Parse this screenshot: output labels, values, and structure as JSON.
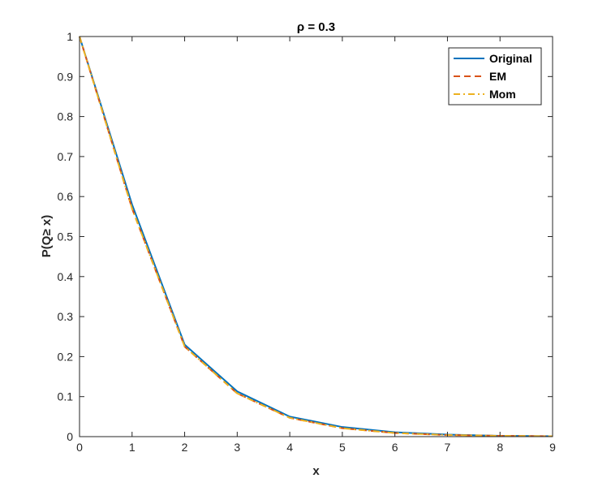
{
  "chart_data": {
    "type": "line",
    "title": "ρ = 0.3",
    "xlabel": "x",
    "ylabel": "P(Q≥ x)",
    "xlim": [
      0,
      9
    ],
    "ylim": [
      0,
      1
    ],
    "xticks": [
      "0",
      "1",
      "2",
      "3",
      "4",
      "5",
      "6",
      "7",
      "8",
      "9"
    ],
    "yticks": [
      "0",
      "0.1",
      "0.2",
      "0.3",
      "0.4",
      "0.5",
      "0.6",
      "0.7",
      "0.8",
      "0.9",
      "1"
    ],
    "grid": false,
    "legend_position": "top-right",
    "x": [
      0,
      1,
      2,
      3,
      4,
      5,
      6,
      7,
      8,
      9
    ],
    "series": [
      {
        "name": "Original",
        "color": "#0072BD",
        "style": "solid",
        "values": [
          1.0,
          0.58,
          0.23,
          0.113,
          0.05,
          0.024,
          0.011,
          0.005,
          0.002,
          0.001
        ]
      },
      {
        "name": "EM",
        "color": "#D95319",
        "style": "dashed",
        "values": [
          1.0,
          0.57,
          0.225,
          0.108,
          0.047,
          0.021,
          0.009,
          0.004,
          0.002,
          0.001
        ]
      },
      {
        "name": "Mom",
        "color": "#EDB120",
        "style": "dashdot",
        "values": [
          1.0,
          0.57,
          0.225,
          0.108,
          0.047,
          0.021,
          0.009,
          0.004,
          0.002,
          0.001
        ]
      }
    ]
  }
}
